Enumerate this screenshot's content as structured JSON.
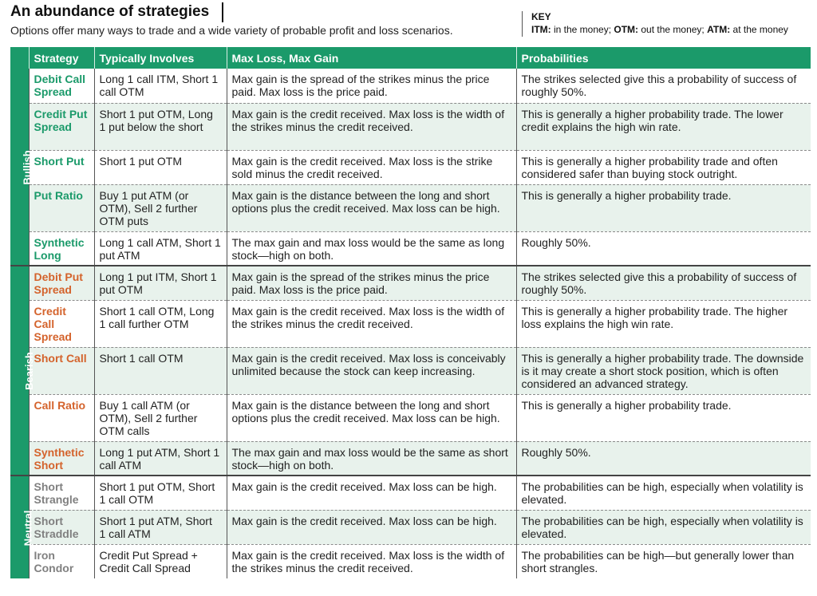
{
  "header": {
    "title": "An abundance of strategies",
    "subtitle": "Options offer many ways to trade and a wide variety of probable profit and loss scenarios.",
    "key_label": "KEY",
    "key": [
      {
        "abbr": "ITM:",
        "text": " in the money; "
      },
      {
        "abbr": "OTM:",
        "text": " out the money; "
      },
      {
        "abbr": "ATM:",
        "text": " at the money"
      }
    ]
  },
  "table": {
    "columns": [
      "Strategy",
      "Typically Involves",
      "Max Loss, Max Gain",
      "Probabilities"
    ],
    "groups": [
      {
        "name": "Bullish",
        "color": "#1b9a6a",
        "rows": [
          {
            "strategy": "Debit Call Spread",
            "involves": "Long 1 call ITM, Short 1 call OTM",
            "maxlossgain": "Max gain is the spread of the strikes minus the price paid. Max loss is the price paid.",
            "prob": "The strikes selected give this a probability of success of roughly 50%."
          },
          {
            "strategy": "Credit Put Spread",
            "involves": "Short 1 put OTM, Long 1 put below the short",
            "maxlossgain": "Max gain is the credit received. Max loss is the width of the strikes minus the credit received.",
            "prob": "This is generally a higher probability trade. The lower credit explains the high win rate."
          },
          {
            "strategy": "Short Put",
            "involves": "Short 1 put OTM",
            "maxlossgain": "Max gain is the credit received. Max loss is the strike sold minus the credit received.",
            "prob": "This is generally a higher probability trade and often considered safer than buying stock outright."
          },
          {
            "strategy": "Put Ratio",
            "involves": "Buy 1 put ATM (or OTM), Sell 2 further OTM puts",
            "maxlossgain": "Max gain is the distance between the long and short options plus the credit received. Max loss can be high.",
            "prob": "This is generally a higher probability trade."
          },
          {
            "strategy": "Synthetic Long",
            "involves": "Long 1 call ATM, Short 1 put ATM",
            "maxlossgain": "The max gain and max loss would be the same as long stock—high on both.",
            "prob": "Roughly 50%."
          }
        ]
      },
      {
        "name": "Bearish",
        "color": "#d4632c",
        "rows": [
          {
            "strategy": "Debit Put Spread",
            "involves": "Long 1 put ITM, Short 1 put OTM",
            "maxlossgain": "Max gain is the spread of the strikes minus the price paid. Max loss is the price paid.",
            "prob": "The strikes selected give this a probability of success of roughly 50%."
          },
          {
            "strategy": "Credit Call Spread",
            "involves": "Short 1 call OTM, Long 1 call further OTM",
            "maxlossgain": "Max gain is the credit received. Max loss is the width of the strikes minus the credit received.",
            "prob": "This is generally a higher probability trade. The higher loss explains the high win rate."
          },
          {
            "strategy": "Short Call",
            "involves": "Short 1 call OTM",
            "maxlossgain": "Max gain is the credit received. Max loss is conceivably unlimited because the stock can keep increasing.",
            "prob": "This is generally a higher probability trade. The downside is it may create a short stock position, which is often considered an advanced strategy."
          },
          {
            "strategy": "Call Ratio",
            "involves": "Buy 1 call ATM (or OTM), Sell 2 further OTM calls",
            "maxlossgain": "Max gain is the distance between the long and short options plus the credit received. Max loss can be high.",
            "prob": "This is generally a higher probability trade."
          },
          {
            "strategy": "Synthetic Short",
            "involves": "Long 1 put ATM, Short 1 call ATM",
            "maxlossgain": "The max gain and max loss would be the same as short stock—high on both.",
            "prob": "Roughly 50%."
          }
        ]
      },
      {
        "name": "Neutral",
        "color": "#808080",
        "rows": [
          {
            "strategy": "Short Strangle",
            "involves": "Short 1 put OTM, Short 1 call OTM",
            "maxlossgain": "Max gain is the credit received. Max loss can be high.",
            "prob": "The probabilities can be high, especially when volatility is elevated."
          },
          {
            "strategy": "Short Straddle",
            "involves": "Short 1 put ATM, Short 1 call ATM",
            "maxlossgain": "Max gain is the credit received. Max loss can be high.",
            "prob": "The probabilities can be high, especially when volatility is elevated."
          },
          {
            "strategy": "Iron Condor",
            "involves": "Credit Put Spread + Credit Call Spread",
            "maxlossgain": "Max gain is the credit received. Max loss is the width of the strikes minus the credit received.",
            "prob": "The probabilities can be high—but generally lower than short strangles."
          }
        ]
      }
    ]
  }
}
